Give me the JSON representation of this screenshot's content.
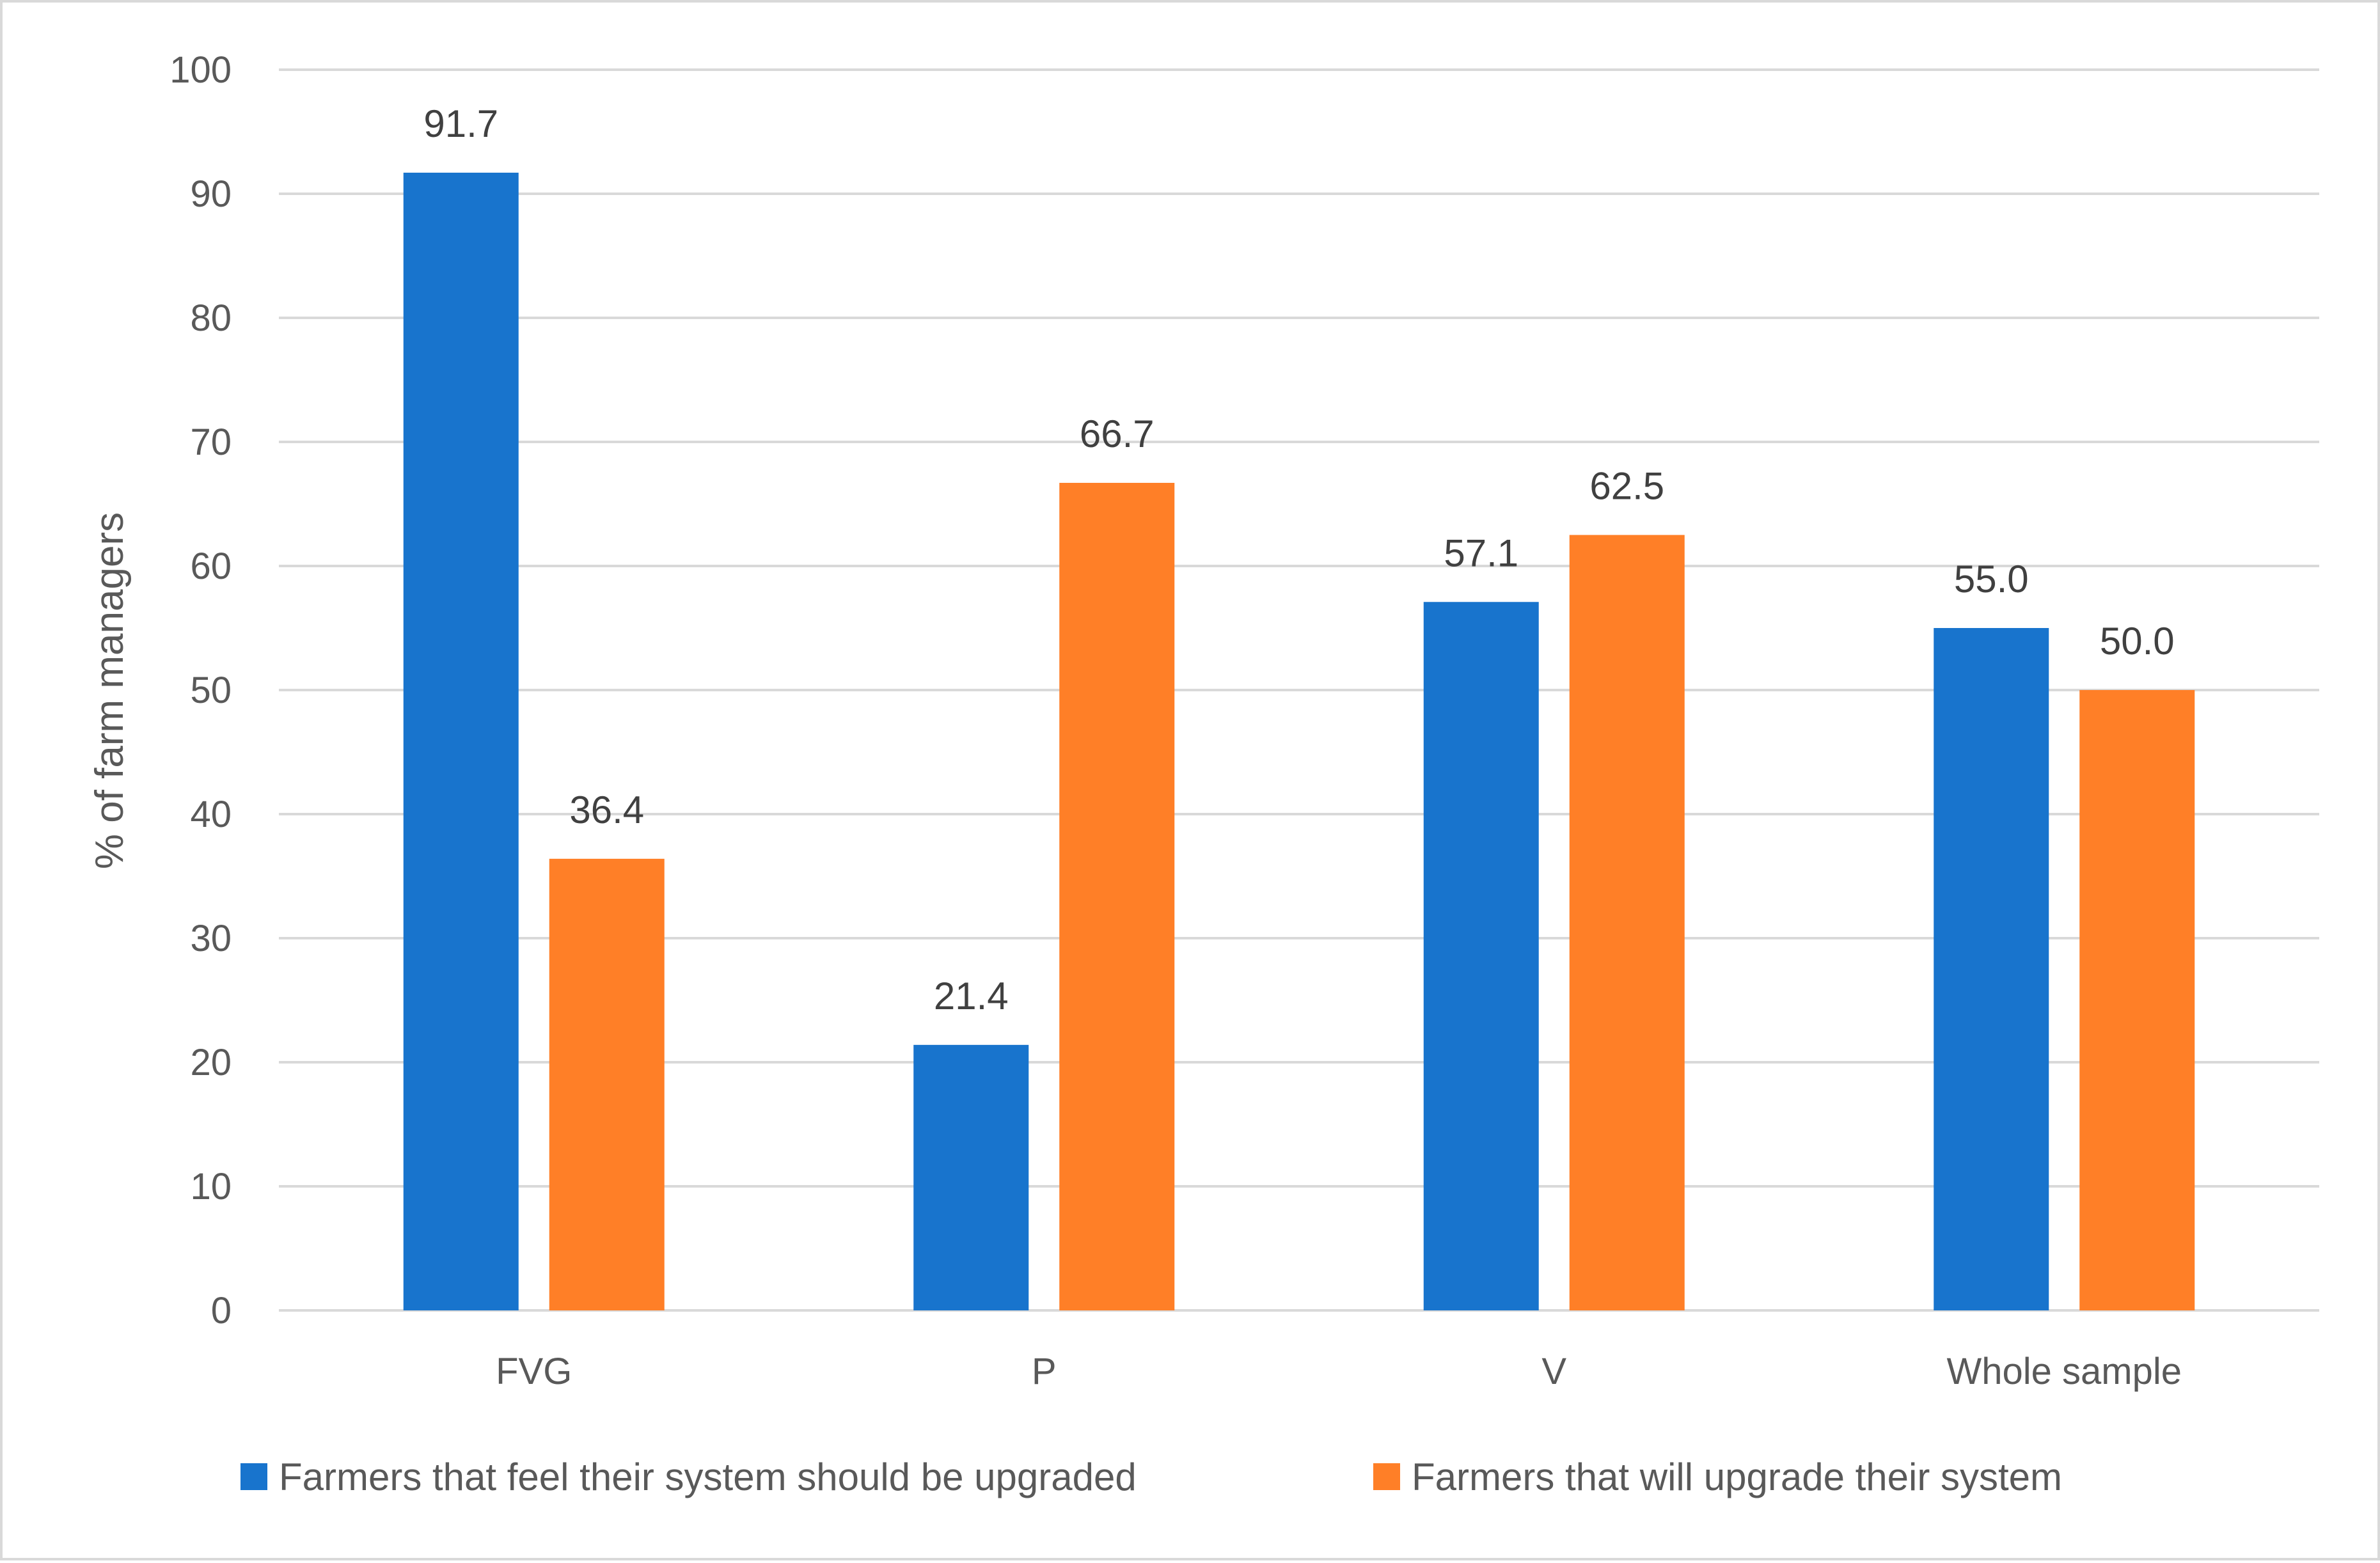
{
  "chart_data": {
    "type": "bar",
    "title": "",
    "xlabel": "",
    "ylabel": "% of farm managers",
    "ylim": [
      0,
      100
    ],
    "yticks": [
      0,
      10,
      20,
      30,
      40,
      50,
      60,
      70,
      80,
      90,
      100
    ],
    "grid": true,
    "legend_position": "bottom",
    "categories": [
      "FVG",
      "P",
      "V",
      "Whole sample"
    ],
    "series": [
      {
        "name": "Farmers that feel their system should be upgraded",
        "color": "#1874CD",
        "values": [
          91.7,
          21.4,
          57.1,
          55.0
        ],
        "labels": [
          "91.7",
          "21.4",
          "57.1",
          "55.0"
        ]
      },
      {
        "name": "Farmers that will upgrade their system",
        "color": "#FF7F27",
        "values": [
          36.4,
          66.7,
          62.5,
          50.0
        ],
        "labels": [
          "36.4",
          "66.7",
          "62.5",
          "50.0"
        ]
      }
    ]
  }
}
